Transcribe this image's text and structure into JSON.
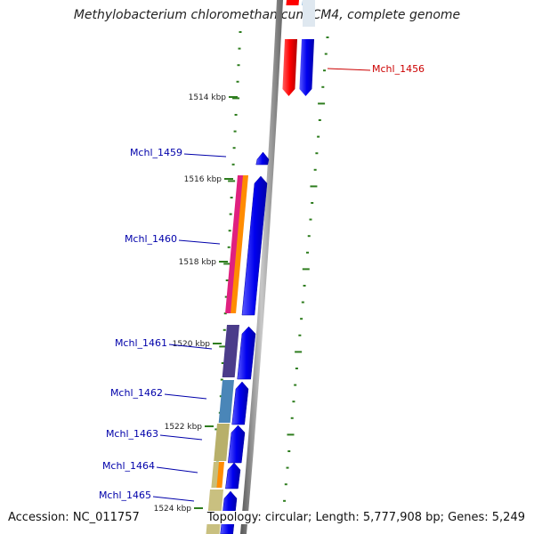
{
  "title": "Methylobacterium chloromethanicum CM4, complete genome",
  "footer": {
    "accession": "Accession: NC_011757",
    "summary": "Topology: circular; Length: 5,777,908 bp; Genes: 5,249"
  },
  "colors": {
    "backbone": "#8c8c8c",
    "tick": "#2e7d1e",
    "label_forward": "#0000aa",
    "label_reverse": "#cc0000",
    "cds": "#0000ee"
  },
  "ticks": [
    "1514 kbp",
    "1516 kbp",
    "1518 kbp",
    "1520 kbp",
    "1522 kbp",
    "1524 kbp"
  ],
  "genes": [
    {
      "label": "Mchl_1456",
      "strand": "reverse"
    },
    {
      "label": "Mchl_1459",
      "strand": "forward"
    },
    {
      "label": "Mchl_1460",
      "strand": "forward"
    },
    {
      "label": "Mchl_1461",
      "strand": "forward"
    },
    {
      "label": "Mchl_1462",
      "strand": "forward"
    },
    {
      "label": "Mchl_1463",
      "strand": "forward"
    },
    {
      "label": "Mchl_1464",
      "strand": "forward"
    },
    {
      "label": "Mchl_1465",
      "strand": "forward"
    }
  ]
}
